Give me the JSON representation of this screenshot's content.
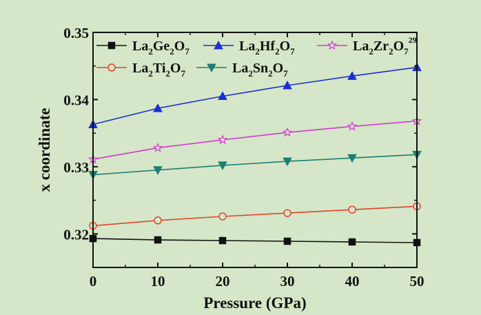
{
  "chart_data": {
    "type": "line",
    "xlabel": "Pressure (GPa)",
    "ylabel": "x coordinate",
    "xlim": [
      0,
      50
    ],
    "ylim": [
      0.315,
      0.35
    ],
    "x_ticks": [
      "0",
      "10",
      "20",
      "30",
      "40",
      "50"
    ],
    "y_ticks": [
      "0.32",
      "0.33",
      "0.34",
      "0.35"
    ],
    "grid": false,
    "legend_position": "top",
    "x": [
      0,
      10,
      20,
      30,
      40,
      50
    ],
    "series": [
      {
        "name": "La2Ge2O7",
        "legend": [
          {
            "t": "La"
          },
          {
            "t": "2",
            "sub": true
          },
          {
            "t": "Ge"
          },
          {
            "t": "2",
            "sub": true
          },
          {
            "t": "O"
          },
          {
            "t": "7",
            "sub": true
          }
        ],
        "color": "#111111",
        "marker": "square",
        "filled": true,
        "values": [
          0.3193,
          0.3191,
          0.319,
          0.3189,
          0.3188,
          0.3187
        ]
      },
      {
        "name": "La2Hf2O7",
        "legend": [
          {
            "t": "La"
          },
          {
            "t": "2",
            "sub": true
          },
          {
            "t": "Hf"
          },
          {
            "t": "2",
            "sub": true
          },
          {
            "t": "O"
          },
          {
            "t": "7",
            "sub": true
          }
        ],
        "color": "#1a2fd0",
        "marker": "triangle-up",
        "filled": true,
        "values": [
          0.3363,
          0.3387,
          0.3405,
          0.3421,
          0.3435,
          0.3448
        ]
      },
      {
        "name": "La2Zr2O7 29",
        "legend": [
          {
            "t": "La"
          },
          {
            "t": "2",
            "sub": true
          },
          {
            "t": "Zr"
          },
          {
            "t": "2",
            "sub": true
          },
          {
            "t": "O"
          },
          {
            "t": "7",
            "sub": true
          },
          {
            "t": "29",
            "sup": true
          }
        ],
        "color": "#d23ad2",
        "marker": "star",
        "filled": false,
        "values": [
          0.3311,
          0.3328,
          0.334,
          0.3351,
          0.336,
          0.3368
        ]
      },
      {
        "name": "La2Ti2O7",
        "legend": [
          {
            "t": "La"
          },
          {
            "t": "2",
            "sub": true
          },
          {
            "t": "Ti"
          },
          {
            "t": "2",
            "sub": true
          },
          {
            "t": "O"
          },
          {
            "t": "7",
            "sub": true
          }
        ],
        "color": "#e0442a",
        "marker": "circle",
        "filled": false,
        "values": [
          0.3212,
          0.322,
          0.3226,
          0.3231,
          0.3236,
          0.3241
        ]
      },
      {
        "name": "La2Sn2O7",
        "legend": [
          {
            "t": "La"
          },
          {
            "t": "2",
            "sub": true
          },
          {
            "t": "Sn"
          },
          {
            "t": "2",
            "sub": true
          },
          {
            "t": "O"
          },
          {
            "t": "7",
            "sub": true
          }
        ],
        "color": "#1a7f72",
        "marker": "triangle-down",
        "filled": true,
        "values": [
          0.3288,
          0.3295,
          0.3302,
          0.3308,
          0.3313,
          0.3318
        ]
      }
    ]
  }
}
